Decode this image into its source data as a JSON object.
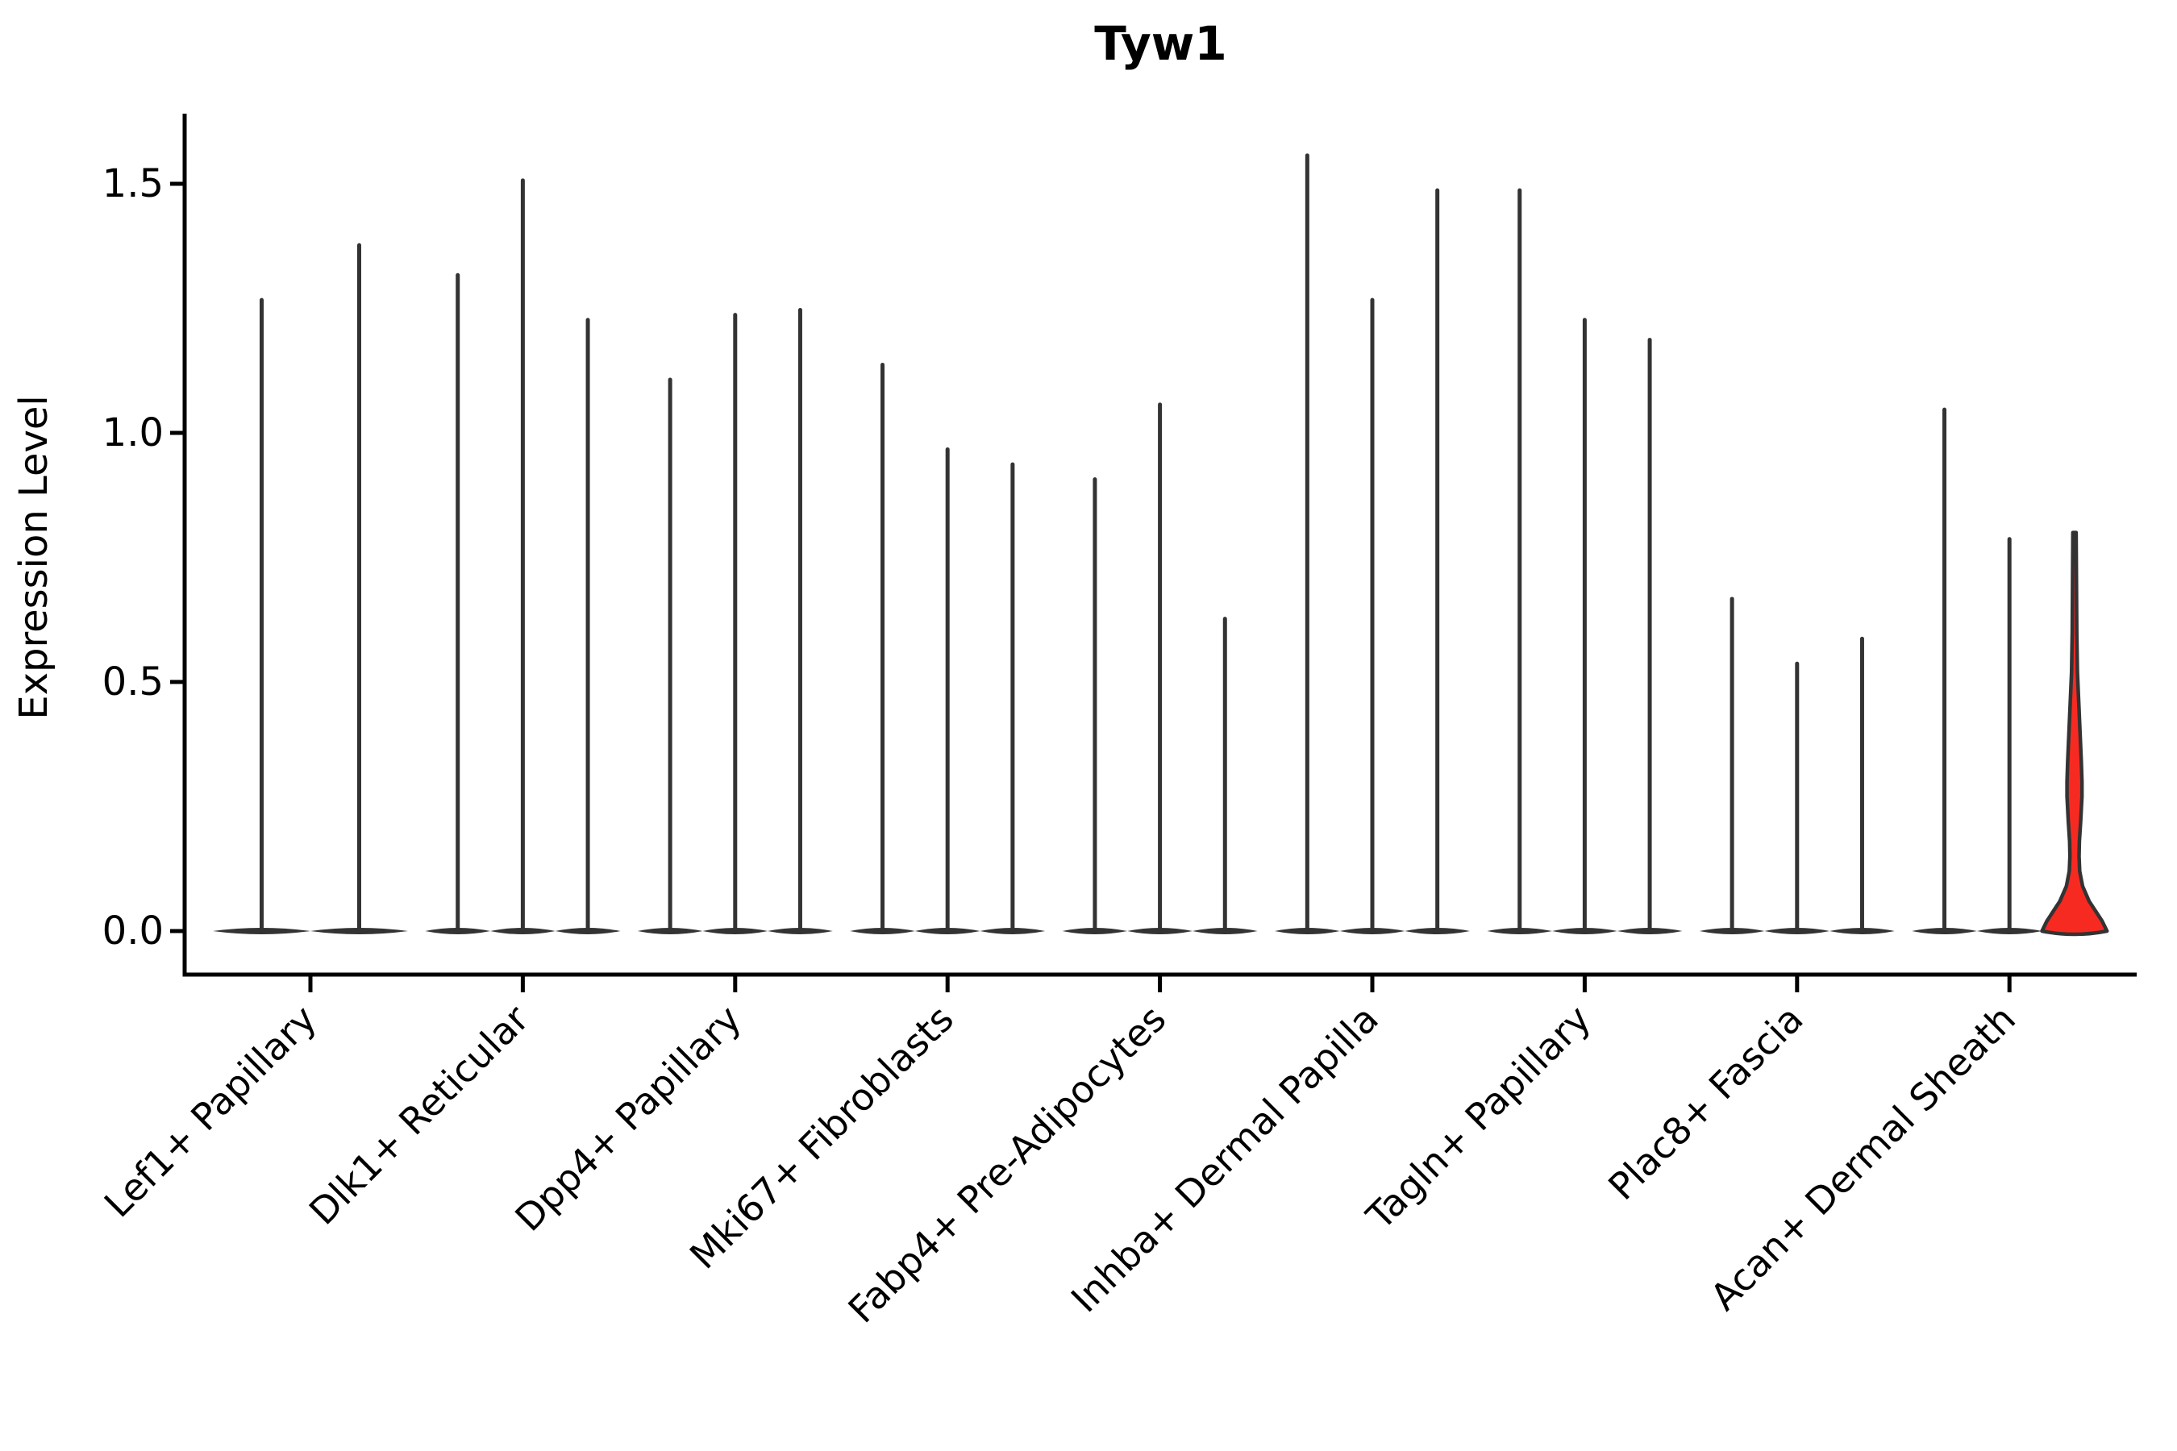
{
  "chart_data": {
    "type": "violin",
    "title": "Tyw1",
    "ylabel": "Expression Level",
    "xlabel": "",
    "ylim": [
      0,
      1.62
    ],
    "grid": false,
    "legend": "none",
    "yticks": [
      {
        "value": 0.0,
        "label": "0.0"
      },
      {
        "value": 0.5,
        "label": "0.5"
      },
      {
        "value": 1.0,
        "label": "1.0"
      },
      {
        "value": 1.5,
        "label": "1.5"
      }
    ],
    "categories": [
      "Lef1+ Papillary",
      "Dlk1+ Reticular",
      "Dpp4+ Papillary",
      "Mki67+ Fibroblasts",
      "Fabp4+ Pre-Adipocytes",
      "Inhba+ Dermal Papilla",
      "Tagln+ Papillary",
      "Plac8+ Fascia",
      "Acan+ Dermal Sheath"
    ],
    "groups": [
      {
        "label": "Lef1+ Papillary",
        "violins": [
          {
            "max": 1.27
          },
          {
            "max": 1.38
          }
        ]
      },
      {
        "label": "Dlk1+ Reticular",
        "violins": [
          {
            "max": 1.32
          },
          {
            "max": 1.51
          },
          {
            "max": 1.23
          }
        ]
      },
      {
        "label": "Dpp4+ Papillary",
        "violins": [
          {
            "max": 1.11
          },
          {
            "max": 1.24
          },
          {
            "max": 1.25
          }
        ]
      },
      {
        "label": "Mki67+ Fibroblasts",
        "violins": [
          {
            "max": 1.14
          },
          {
            "max": 0.97
          },
          {
            "max": 0.94
          }
        ]
      },
      {
        "label": "Fabp4+ Pre-Adipocytes",
        "violins": [
          {
            "max": 0.91
          },
          {
            "max": 1.06
          },
          {
            "max": 0.63
          }
        ]
      },
      {
        "label": "Inhba+ Dermal Papilla",
        "violins": [
          {
            "max": 1.56
          },
          {
            "max": 1.27
          },
          {
            "max": 1.49
          }
        ]
      },
      {
        "label": "Tagln+ Papillary",
        "violins": [
          {
            "max": 1.49
          },
          {
            "max": 1.23
          },
          {
            "max": 1.19
          }
        ]
      },
      {
        "label": "Plac8+ Fascia",
        "violins": [
          {
            "max": 0.67
          },
          {
            "max": 0.54
          },
          {
            "max": 0.59
          }
        ]
      },
      {
        "label": "Acan+ Dermal Sheath",
        "violins": [
          {
            "max": 1.05
          },
          {
            "max": 0.79
          },
          {
            "max": 0.8,
            "highlighted": true
          }
        ]
      }
    ],
    "highlight_profile": [
      [
        0.8,
        0.05
      ],
      [
        0.7,
        0.06
      ],
      [
        0.6,
        0.07
      ],
      [
        0.52,
        0.09
      ],
      [
        0.46,
        0.13
      ],
      [
        0.4,
        0.17
      ],
      [
        0.34,
        0.21
      ],
      [
        0.3,
        0.23
      ],
      [
        0.27,
        0.23
      ],
      [
        0.22,
        0.19
      ],
      [
        0.18,
        0.15
      ],
      [
        0.15,
        0.14
      ],
      [
        0.12,
        0.16
      ],
      [
        0.09,
        0.25
      ],
      [
        0.06,
        0.45
      ],
      [
        0.04,
        0.65
      ],
      [
        0.02,
        0.85
      ],
      [
        0.0,
        1.0
      ]
    ],
    "colors": {
      "axis": "#000000",
      "text": "#000000",
      "violin_stroke": "#333333",
      "violin_base_fill": "#333333",
      "highlight_fill": "#f72a22",
      "background": "#ffffff"
    }
  }
}
